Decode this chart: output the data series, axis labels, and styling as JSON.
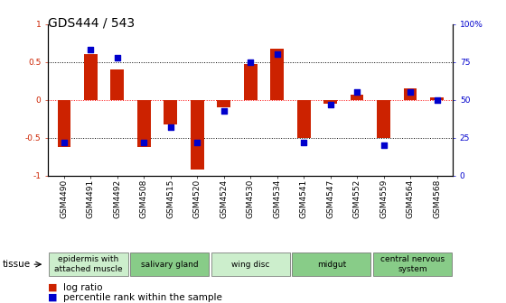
{
  "title": "GDS444 / 543",
  "samples": [
    "GSM4490",
    "GSM4491",
    "GSM4492",
    "GSM4508",
    "GSM4515",
    "GSM4520",
    "GSM4524",
    "GSM4530",
    "GSM4534",
    "GSM4541",
    "GSM4547",
    "GSM4552",
    "GSM4559",
    "GSM4564",
    "GSM4568"
  ],
  "log_ratio": [
    -0.62,
    0.6,
    0.4,
    -0.62,
    -0.32,
    -0.92,
    -0.1,
    0.47,
    0.68,
    -0.5,
    -0.05,
    0.07,
    -0.5,
    0.15,
    0.03
  ],
  "percentile": [
    22,
    83,
    78,
    22,
    32,
    22,
    43,
    75,
    80,
    22,
    47,
    55,
    20,
    55,
    50
  ],
  "bar_color": "#cc2200",
  "dot_color": "#0000cc",
  "ylim": [
    -1,
    1
  ],
  "y2lim": [
    0,
    100
  ],
  "yticks": [
    -1,
    -0.5,
    0,
    0.5,
    1
  ],
  "y2ticks": [
    0,
    25,
    50,
    75,
    100
  ],
  "tissue_groups": [
    {
      "label": "epidermis with\nattached muscle",
      "start": 0,
      "end": 3,
      "color": "#cceecc"
    },
    {
      "label": "salivary gland",
      "start": 3,
      "end": 6,
      "color": "#88cc88"
    },
    {
      "label": "wing disc",
      "start": 6,
      "end": 9,
      "color": "#cceecc"
    },
    {
      "label": "midgut",
      "start": 9,
      "end": 12,
      "color": "#88cc88"
    },
    {
      "label": "central nervous\nsystem",
      "start": 12,
      "end": 15,
      "color": "#88cc88"
    }
  ],
  "bar_width": 0.5,
  "dot_size": 25,
  "title_fontsize": 10,
  "tick_fontsize": 6.5,
  "label_fontsize": 7.5,
  "tissue_fontsize": 6.5,
  "legend_fontsize": 7.5
}
